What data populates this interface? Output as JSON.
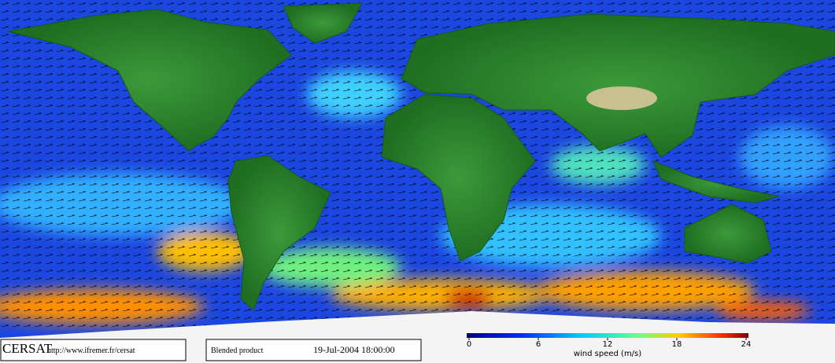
{
  "brand": "CERSAT",
  "url": "http://www.ifremer.fr/cersat",
  "product": "Blended product",
  "timestamp": "19-Jul-2004 18:00:00",
  "colorbar": {
    "label": "wind speed (m/s)",
    "lim": [
      0,
      24
    ],
    "ticks": [
      0,
      6,
      12,
      18,
      24
    ]
  }
}
